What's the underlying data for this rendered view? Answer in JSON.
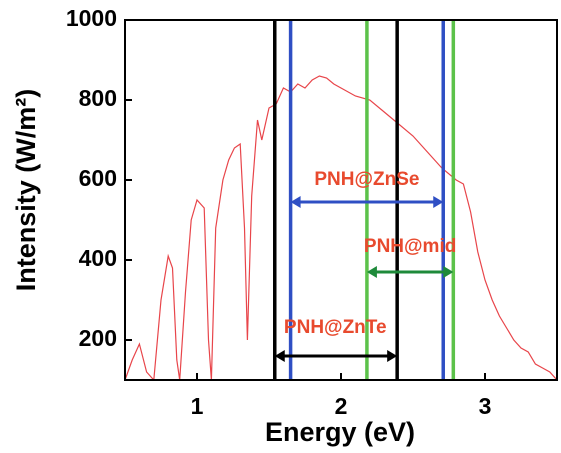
{
  "chart_data": {
    "type": "line",
    "xlabel": "Energy (eV)",
    "ylabel": "Intensity (W/m²)",
    "xlim": [
      0.5,
      3.5
    ],
    "ylim": [
      100,
      1000
    ],
    "xticks": [
      1,
      2,
      3
    ],
    "yticks": [
      200,
      400,
      600,
      800,
      1000
    ],
    "series": [
      {
        "color": "#e8454a",
        "x": [
          0.5,
          0.55,
          0.6,
          0.65,
          0.7,
          0.75,
          0.8,
          0.83,
          0.86,
          0.88,
          0.92,
          0.96,
          1.0,
          1.05,
          1.08,
          1.1,
          1.13,
          1.18,
          1.22,
          1.26,
          1.3,
          1.33,
          1.35,
          1.38,
          1.42,
          1.45,
          1.5,
          1.55,
          1.6,
          1.65,
          1.7,
          1.75,
          1.8,
          1.85,
          1.9,
          1.95,
          2.0,
          2.1,
          2.2,
          2.3,
          2.4,
          2.5,
          2.6,
          2.7,
          2.8,
          2.85,
          2.9,
          2.95,
          3.0,
          3.05,
          3.1,
          3.15,
          3.2,
          3.25,
          3.3,
          3.35,
          3.4,
          3.45,
          3.5
        ],
        "values": [
          100,
          150,
          190,
          120,
          100,
          300,
          410,
          380,
          150,
          100,
          320,
          500,
          550,
          530,
          200,
          100,
          480,
          600,
          650,
          680,
          690,
          480,
          200,
          560,
          750,
          700,
          780,
          790,
          830,
          820,
          840,
          830,
          850,
          860,
          855,
          840,
          830,
          810,
          800,
          770,
          740,
          710,
          670,
          630,
          600,
          590,
          520,
          420,
          350,
          300,
          260,
          230,
          200,
          180,
          170,
          140,
          130,
          120,
          100
        ]
      }
    ],
    "vlines": [
      {
        "x": 1.54,
        "color": "#000000"
      },
      {
        "x": 2.39,
        "color": "#000000"
      },
      {
        "x": 1.65,
        "color": "#2f4fc4"
      },
      {
        "x": 2.71,
        "color": "#2f4fc4"
      },
      {
        "x": 2.18,
        "color": "#5cc24a"
      },
      {
        "x": 2.78,
        "color": "#5cc24a"
      }
    ],
    "arrows": [
      {
        "text": "PNH@ZnSe",
        "x1": 1.65,
        "x2": 2.71,
        "y": 545,
        "label_x": 2.18,
        "label_y": 600,
        "color": "#2f4fc4"
      },
      {
        "text": "PNH@mid",
        "x1": 2.18,
        "x2": 2.78,
        "y": 370,
        "label_x": 2.48,
        "label_y": 432,
        "color": "#1e8a3a"
      },
      {
        "text": "PNH@ZnTe",
        "x1": 1.54,
        "x2": 2.39,
        "y": 160,
        "label_x": 1.96,
        "label_y": 230,
        "color": "#000000"
      }
    ]
  }
}
